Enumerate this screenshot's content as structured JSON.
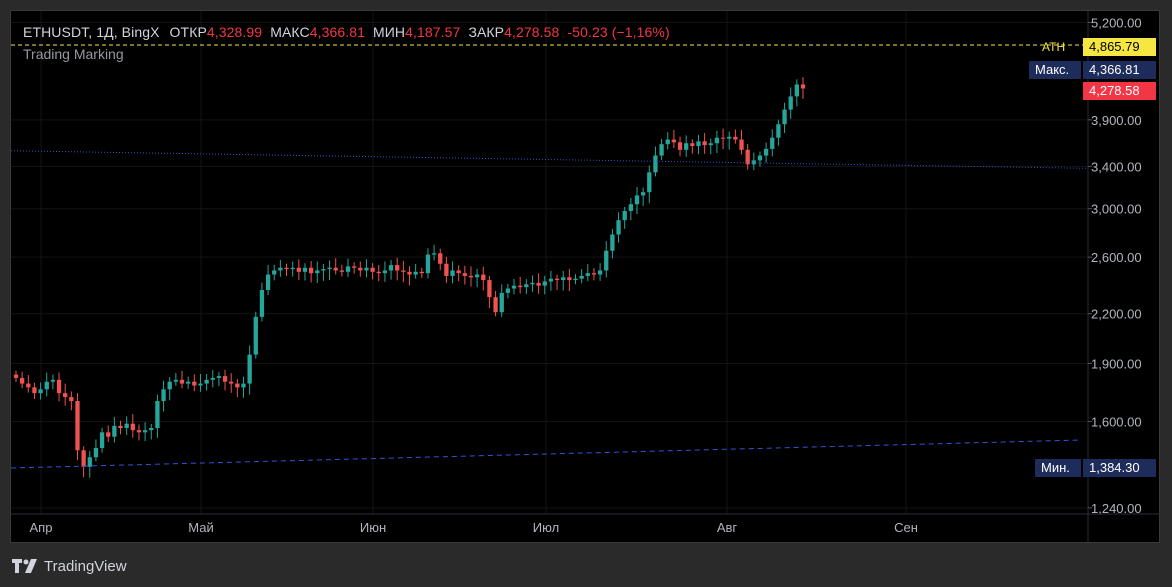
{
  "legend": {
    "symbol": "ETHUSDT, 1Д, BingX",
    "open_label": "ОТКР",
    "open_value": "4,328.99",
    "high_label": "МАКС",
    "high_value": "4,366.81",
    "low_label": "МИН",
    "low_value": "4,187.57",
    "close_label": "ЗАКР",
    "close_value": "4,278.58",
    "change": "-50.23 (−1,16%)"
  },
  "indicator": "Trading Marking",
  "price_tags": {
    "ath_label": "ATH",
    "ath_value": "4,865.79",
    "max_label": "Макс.",
    "max_value": "4,366.81",
    "last_value": "4,278.58",
    "min_label": "Мин.",
    "min_value": "1,384.30"
  },
  "brand": "TradingView",
  "colors": {
    "up": "#26a69a",
    "down": "#ef5350",
    "ath_line": "#f5e642",
    "trend_line": "#2f55d4",
    "tag_dark_blue": "#1e2c5c",
    "last_price": "#f23645"
  },
  "chart_data": {
    "type": "candlestick",
    "symbol": "ETHUSDT",
    "interval": "1D",
    "exchange": "BingX",
    "y_scale": "log",
    "ylim": [
      1200,
      5300
    ],
    "y_ticks": [
      "5,200.00",
      "3,900.00",
      "3,400.00",
      "3,000.00",
      "2,600.00",
      "2,200.00",
      "1,900.00",
      "1,600.00",
      "1,240.00"
    ],
    "x_ticks": [
      "Апр",
      "Май",
      "Июн",
      "Июл",
      "Авг",
      "Сен"
    ],
    "ath": 4865.79,
    "period_high": 4366.81,
    "period_low": 1384.3,
    "last_close": 4278.58,
    "series_close": [
      1820,
      1790,
      1770,
      1740,
      1760,
      1800,
      1810,
      1740,
      1720,
      1700,
      1470,
      1400,
      1440,
      1480,
      1550,
      1530,
      1580,
      1570,
      1590,
      1560,
      1550,
      1560,
      1570,
      1700,
      1760,
      1800,
      1810,
      1790,
      1800,
      1780,
      1790,
      1810,
      1820,
      1830,
      1800,
      1790,
      1770,
      1790,
      1950,
      2180,
      2360,
      2470,
      2500,
      2520,
      2510,
      2520,
      2490,
      2520,
      2480,
      2500,
      2510,
      2520,
      2500,
      2490,
      2530,
      2520,
      2500,
      2520,
      2490,
      2480,
      2500,
      2540,
      2500,
      2490,
      2470,
      2490,
      2480,
      2620,
      2630,
      2550,
      2460,
      2500,
      2480,
      2460,
      2450,
      2470,
      2430,
      2310,
      2210,
      2340,
      2370,
      2390,
      2380,
      2400,
      2410,
      2390,
      2420,
      2440,
      2430,
      2450,
      2430,
      2440,
      2460,
      2480,
      2470,
      2500,
      2650,
      2780,
      2900,
      2980,
      3040,
      3120,
      3150,
      3340,
      3510,
      3630,
      3680,
      3650,
      3570,
      3640,
      3610,
      3660,
      3620,
      3640,
      3700,
      3690,
      3710,
      3680,
      3570,
      3420,
      3460,
      3510,
      3580,
      3700,
      3850,
      4020,
      4180,
      4330,
      4279
    ]
  }
}
